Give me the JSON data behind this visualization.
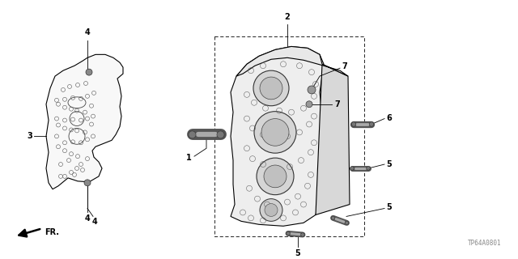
{
  "background_color": "#ffffff",
  "line_color": "#000000",
  "diagram_code": "TP64A0801",
  "fr_label": "FR."
}
